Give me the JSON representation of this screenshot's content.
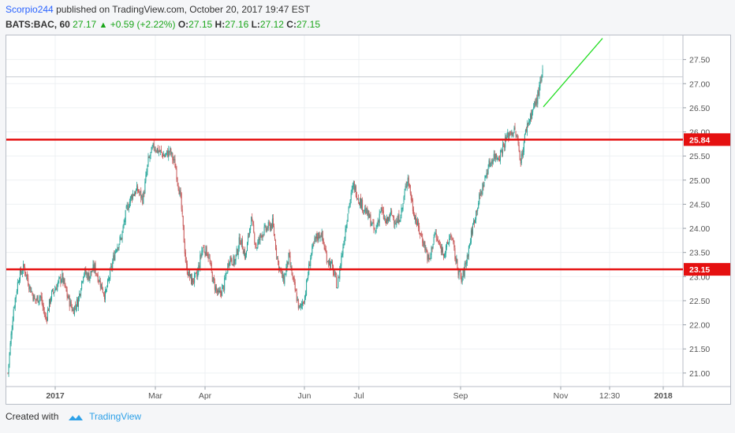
{
  "header": {
    "author": "Scorpio244",
    "published": "published on TradingView.com, October 20, 2017 19:47 EST",
    "symbol": "BATS:BAC, 60",
    "last": "27.17",
    "arrow": "▲",
    "change": "+0.59 (+2.22%)",
    "o_label": "O:",
    "o_value": "27.15",
    "h_label": "H:",
    "h_value": "27.16",
    "l_label": "L:",
    "l_value": "27.12",
    "c_label": "C:",
    "c_value": "27.15"
  },
  "footer": {
    "created_with": "Created with",
    "brand": "TradingView",
    "logo_icon": "tradingview-cloud-icon"
  },
  "colors": {
    "up": "#26a69a",
    "down": "#c85a5a",
    "level_line": "#e51010",
    "trend_line": "#22dd22",
    "grid": "#eef0f3",
    "axis_text": "#555555"
  },
  "chart_data": {
    "type": "candlestick",
    "y_ticks": [
      "27.50",
      "27.00",
      "26.50",
      "26.00",
      "25.50",
      "25.00",
      "24.50",
      "24.00",
      "23.50",
      "23.00",
      "22.50",
      "22.00",
      "21.50",
      "21.00"
    ],
    "ylim": [
      20.72,
      28.0
    ],
    "x_ticks": [
      "2017",
      "Mar",
      "Apr",
      "Jun",
      "Jul",
      "Sep",
      "Nov",
      "12:30",
      "2018"
    ],
    "horizontal_levels": [
      {
        "label": "25.84",
        "value": 25.84
      },
      {
        "label": "23.15",
        "value": 23.15
      }
    ],
    "last_price_line": 27.14,
    "trend_line": {
      "from": 26.52,
      "to": 27.94
    },
    "price_path": [
      21.0,
      22.3,
      23.0,
      23.2,
      22.8,
      22.5,
      22.6,
      22.1,
      22.6,
      22.8,
      23.0,
      22.6,
      22.3,
      22.5,
      23.1,
      23.0,
      23.2,
      22.9,
      22.6,
      23.1,
      23.6,
      23.8,
      24.4,
      24.7,
      24.8,
      24.6,
      25.4,
      25.7,
      25.6,
      25.5,
      25.6,
      25.3,
      24.6,
      23.2,
      22.9,
      23.0,
      23.6,
      23.5,
      22.9,
      22.6,
      22.8,
      23.4,
      23.3,
      23.8,
      23.4,
      24.2,
      23.6,
      23.9,
      24.0,
      24.1,
      23.3,
      22.9,
      23.4,
      22.8,
      22.3,
      22.6,
      23.4,
      23.8,
      23.9,
      23.4,
      23.2,
      22.8,
      23.6,
      24.4,
      24.9,
      24.6,
      24.4,
      24.2,
      23.9,
      24.4,
      24.1,
      24.3,
      24.1,
      24.4,
      25.1,
      24.4,
      24.0,
      23.7,
      23.3,
      23.9,
      23.6,
      23.5,
      23.9,
      23.3,
      22.9,
      23.4,
      24.0,
      24.5,
      24.9,
      25.3,
      25.5,
      25.5,
      25.8,
      26.0,
      26.0,
      25.4,
      26.1,
      26.4,
      26.7,
      27.2
    ]
  }
}
